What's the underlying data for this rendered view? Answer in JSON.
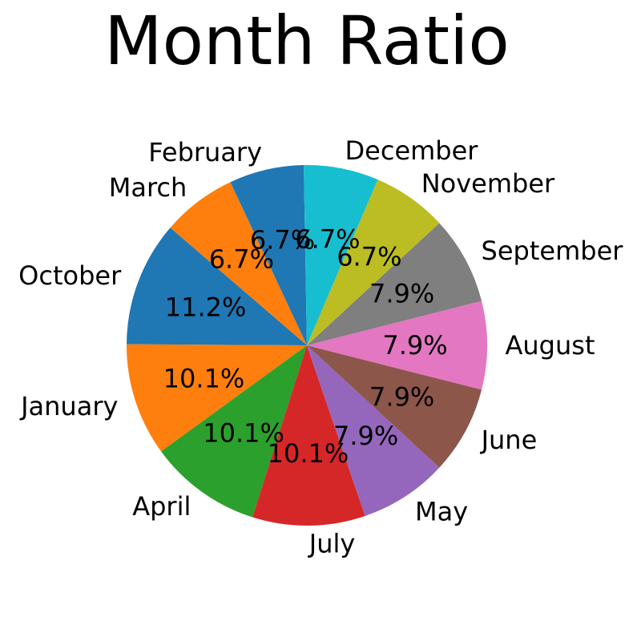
{
  "chart_data": {
    "type": "pie",
    "title": "Month Ratio",
    "start_angle_deg": 91,
    "direction": "counterclockwise",
    "slices": [
      {
        "label": "February",
        "value": 6.7,
        "pct_label": "6.7%",
        "color": "#1f77b4"
      },
      {
        "label": "March",
        "value": 6.7,
        "pct_label": "6.7%",
        "color": "#ff7f0e"
      },
      {
        "label": "October",
        "value": 11.2,
        "pct_label": "11.2%",
        "color": "#1f77b4"
      },
      {
        "label": "January",
        "value": 10.1,
        "pct_label": "10.1%",
        "color": "#ff7f0e"
      },
      {
        "label": "April",
        "value": 10.1,
        "pct_label": "10.1%",
        "color": "#2ca02c"
      },
      {
        "label": "July",
        "value": 10.1,
        "pct_label": "10.1%",
        "color": "#d62728"
      },
      {
        "label": "May",
        "value": 7.9,
        "pct_label": "7.9%",
        "color": "#9467bd"
      },
      {
        "label": "June",
        "value": 7.9,
        "pct_label": "7.9%",
        "color": "#8c564b"
      },
      {
        "label": "August",
        "value": 7.9,
        "pct_label": "7.9%",
        "color": "#e377c2"
      },
      {
        "label": "September",
        "value": 7.9,
        "pct_label": "7.9%",
        "color": "#7f7f7f"
      },
      {
        "label": "November",
        "value": 6.7,
        "pct_label": "6.7%",
        "color": "#bcbd22"
      },
      {
        "label": "December",
        "value": 6.7,
        "pct_label": "6.7%",
        "color": "#17becf"
      }
    ]
  }
}
